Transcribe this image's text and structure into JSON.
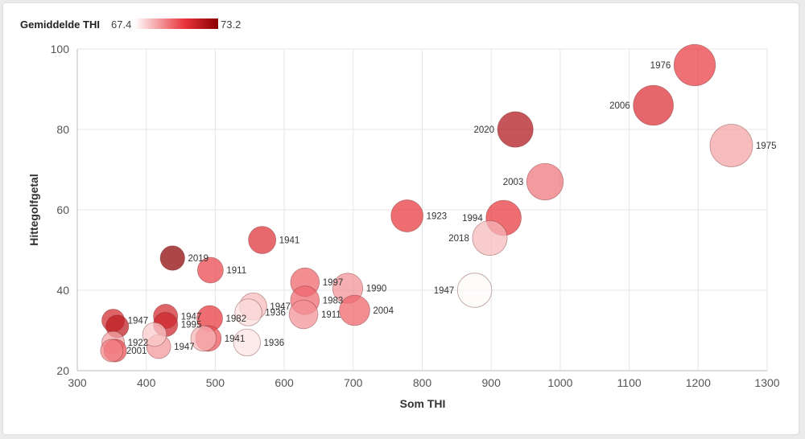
{
  "chart_data": {
    "type": "scatter",
    "xlabel": "Som THI",
    "ylabel": "Hittegolfgetal",
    "xlim": [
      300,
      1300
    ],
    "ylim": [
      20,
      100
    ],
    "xticks": [
      300,
      400,
      500,
      600,
      700,
      800,
      900,
      1000,
      1100,
      1200,
      1300
    ],
    "yticks": [
      20,
      40,
      60,
      80,
      100
    ],
    "grid": true,
    "legend": {
      "title": "Gemiddelde THI",
      "min_label": "67.4",
      "max_label": "73.2",
      "min": 67.4,
      "max": 73.2,
      "color_low": "#ffffff",
      "color_high": "#8b0000",
      "placement": "top-left"
    },
    "points": [
      {
        "x": 1195,
        "y": 96,
        "c": 70.8,
        "label": "1976"
      },
      {
        "x": 1135,
        "y": 86,
        "c": 71.2,
        "label": "2006"
      },
      {
        "x": 1248,
        "y": 76,
        "c": 69.0,
        "label": "1975"
      },
      {
        "x": 935,
        "y": 80,
        "c": 72.3,
        "label": "2020"
      },
      {
        "x": 978,
        "y": 67,
        "c": 69.8,
        "label": "2003"
      },
      {
        "x": 918,
        "y": 58,
        "c": 70.9,
        "label": "1994"
      },
      {
        "x": 898,
        "y": 53,
        "c": 68.6,
        "label": "2018"
      },
      {
        "x": 876,
        "y": 40,
        "c": 67.5,
        "label": "1947"
      },
      {
        "x": 778,
        "y": 58.5,
        "c": 70.9,
        "label": "1923"
      },
      {
        "x": 568,
        "y": 52.5,
        "c": 71.1,
        "label": "1941"
      },
      {
        "x": 438,
        "y": 48,
        "c": 73.2,
        "label": "2019"
      },
      {
        "x": 493,
        "y": 45,
        "c": 70.6,
        "label": "1911"
      },
      {
        "x": 630,
        "y": 42,
        "c": 70.1,
        "label": "1997"
      },
      {
        "x": 692,
        "y": 40.5,
        "c": 69.3,
        "label": "1990"
      },
      {
        "x": 630,
        "y": 37.5,
        "c": 70.0,
        "label": "1983"
      },
      {
        "x": 702,
        "y": 35,
        "c": 70.1,
        "label": "2004"
      },
      {
        "x": 628,
        "y": 34,
        "c": 69.3,
        "label": "1911"
      },
      {
        "x": 555,
        "y": 36,
        "c": 68.6,
        "label": "1947"
      },
      {
        "x": 548,
        "y": 34.5,
        "c": 68.0,
        "label": "1936"
      },
      {
        "x": 492,
        "y": 33,
        "c": 70.9,
        "label": "1982"
      },
      {
        "x": 428,
        "y": 33.5,
        "c": 71.4,
        "label": "1947"
      },
      {
        "x": 428,
        "y": 31.5,
        "c": 71.6,
        "label": "1995"
      },
      {
        "x": 546,
        "y": 27,
        "c": 67.9,
        "label": "1936"
      },
      {
        "x": 490,
        "y": 28,
        "c": 70.4,
        "label": "1941"
      },
      {
        "x": 483,
        "y": 28,
        "c": 68.7,
        "label": ""
      },
      {
        "x": 418,
        "y": 26,
        "c": 69.2,
        "label": "1947"
      },
      {
        "x": 412,
        "y": 29,
        "c": 68.3,
        "label": ""
      },
      {
        "x": 352,
        "y": 32.5,
        "c": 71.4,
        "label": "1947"
      },
      {
        "x": 358,
        "y": 31,
        "c": 72.0,
        "label": ""
      },
      {
        "x": 352,
        "y": 27,
        "c": 69.0,
        "label": "1922"
      },
      {
        "x": 355,
        "y": 25,
        "c": 70.4,
        "label": ""
      },
      {
        "x": 350,
        "y": 25,
        "c": 69.5,
        "label": "2001"
      }
    ]
  }
}
